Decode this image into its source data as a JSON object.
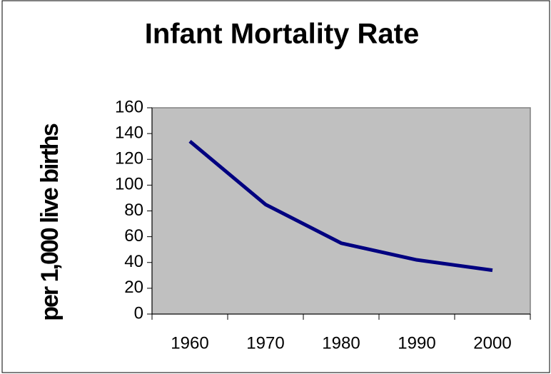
{
  "chart_data": {
    "type": "line",
    "title": "Infant Mortality Rate",
    "y_label": "per 1,000 live births",
    "categories": [
      "1960",
      "1970",
      "1980",
      "1990",
      "2000"
    ],
    "values": [
      134,
      85,
      55,
      42,
      34
    ],
    "color": "#000080",
    "ylim": [
      0,
      160
    ],
    "yticks": [
      0,
      20,
      40,
      60,
      80,
      100,
      120,
      140,
      160
    ],
    "grid": false,
    "plot_background": "#c0c0c0"
  }
}
